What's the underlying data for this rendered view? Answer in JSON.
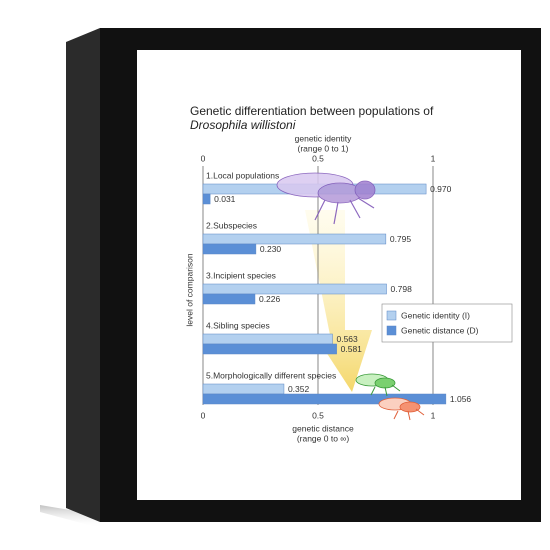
{
  "chart_data": {
    "type": "bar",
    "orientation": "horizontal",
    "title": "Genetic differentiation between populations of",
    "subtitle": "Drosophila willistoni",
    "top_axis_label": [
      "genetic identity",
      "(range 0 to 1)"
    ],
    "bottom_axis_label": [
      "genetic distance",
      "(range 0 to ∞)"
    ],
    "y_axis_label": "level of comparison",
    "categories": [
      "1.Local populations",
      "2.Subspecies",
      "3.Incipient species",
      "4.Sibling species",
      "5.Morphologically different species"
    ],
    "series": [
      {
        "name": "Genetic identity (I)",
        "color": "#b3d0ef",
        "values": [
          0.97,
          0.795,
          0.798,
          0.563,
          0.352
        ],
        "value_labels": [
          "0.970",
          "0.795",
          "0.798",
          "0.563",
          "0.352"
        ]
      },
      {
        "name": "Genetic distance (D)",
        "color": "#5b8fd6",
        "values": [
          0.031,
          0.23,
          0.226,
          0.581,
          1.056
        ],
        "value_labels": [
          "0.031",
          "0.230",
          "0.226",
          "0.581",
          "1.056"
        ]
      }
    ],
    "xlim": [
      0,
      1.1
    ],
    "xticks": [
      0,
      0.5,
      1
    ],
    "x2ticks": [
      0,
      0.5,
      1
    ],
    "grid": true,
    "legend": "right"
  }
}
